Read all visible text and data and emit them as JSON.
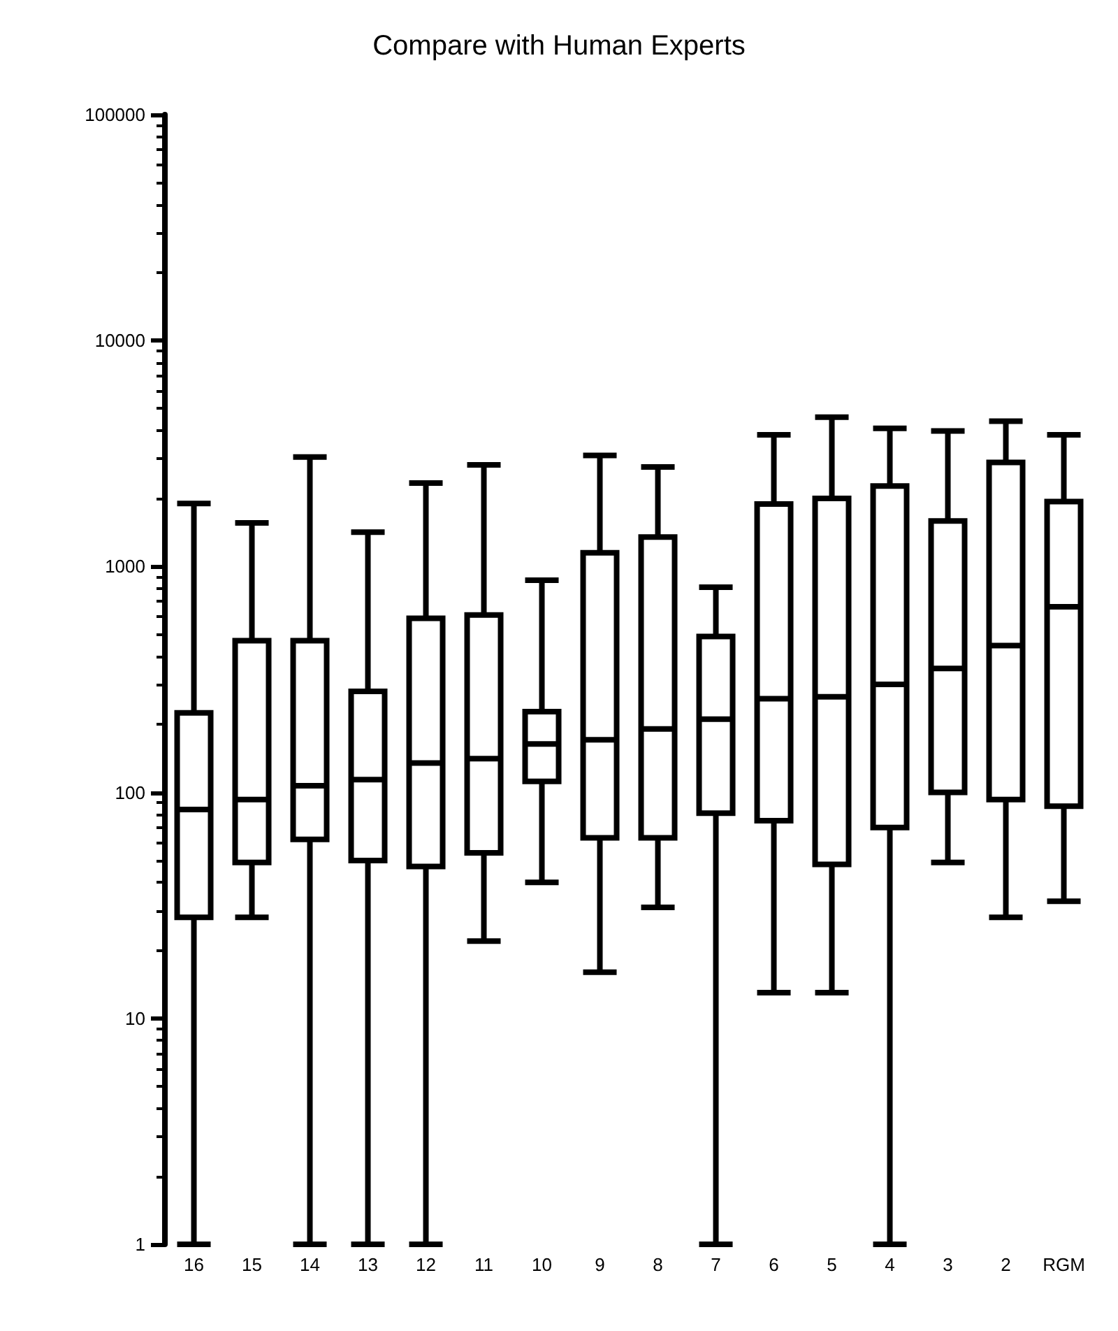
{
  "chart_data": {
    "type": "box",
    "title": "Compare with Human Experts",
    "categories": [
      "16",
      "15",
      "14",
      "13",
      "12",
      "11",
      "10",
      "9",
      "8",
      "7",
      "6",
      "5",
      "4",
      "3",
      "2",
      "RGM"
    ],
    "color": "#000000",
    "boxes": [
      {
        "low": 1,
        "q1": 28,
        "median": 84,
        "q3": 225,
        "high": 1900
      },
      {
        "low": 28,
        "q1": 49,
        "median": 93,
        "q3": 470,
        "high": 1560
      },
      {
        "low": 1,
        "q1": 62,
        "median": 107,
        "q3": 470,
        "high": 3050
      },
      {
        "low": 1,
        "q1": 50,
        "median": 114,
        "q3": 280,
        "high": 1420
      },
      {
        "low": 1,
        "q1": 47,
        "median": 135,
        "q3": 590,
        "high": 2340
      },
      {
        "low": 22,
        "q1": 54,
        "median": 141,
        "q3": 610,
        "high": 2820
      },
      {
        "low": 40,
        "q1": 112,
        "median": 164,
        "q3": 228,
        "high": 870
      },
      {
        "low": 16,
        "q1": 63,
        "median": 171,
        "q3": 1150,
        "high": 3100
      },
      {
        "low": 31,
        "q1": 63,
        "median": 191,
        "q3": 1350,
        "high": 2760
      },
      {
        "low": 1,
        "q1": 81,
        "median": 211,
        "q3": 490,
        "high": 810
      },
      {
        "low": 13,
        "q1": 75,
        "median": 260,
        "q3": 1890,
        "high": 3830
      },
      {
        "low": 13,
        "q1": 48,
        "median": 265,
        "q3": 2000,
        "high": 4580
      },
      {
        "low": 1,
        "q1": 70,
        "median": 301,
        "q3": 2270,
        "high": 4090
      },
      {
        "low": 49,
        "q1": 100,
        "median": 354,
        "q3": 1590,
        "high": 3980
      },
      {
        "low": 28,
        "q1": 93,
        "median": 447,
        "q3": 2890,
        "high": 4400
      },
      {
        "low": 33,
        "q1": 87,
        "median": 664,
        "q3": 1940,
        "high": 3830
      }
    ],
    "log": "y",
    "ylim": [
      1,
      100000
    ],
    "yticks": [
      1,
      10,
      100,
      1000,
      10000,
      100000
    ],
    "grid": false
  }
}
